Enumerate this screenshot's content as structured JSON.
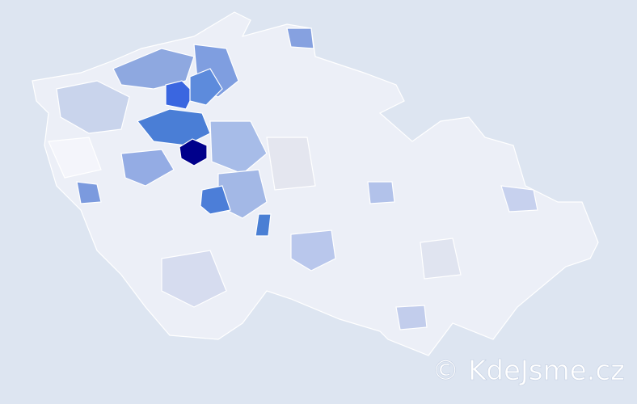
{
  "watermark": "© KdeJsme.cz"
}
